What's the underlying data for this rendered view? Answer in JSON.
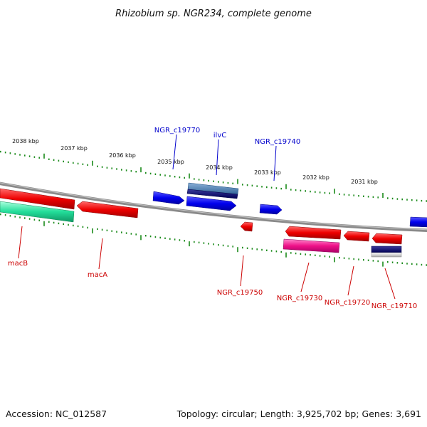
{
  "title": "Rhizobium sp. NGR234, complete genome",
  "footer": {
    "accession": "Accession: NC_012587",
    "summary": "Topology: circular; Length: 3,925,702 bp; Genes: 3,691"
  },
  "colors": {
    "backbone": "#8a8a8a",
    "tick": "#1a8a1a",
    "label_forward": "#0000cc",
    "label_reverse": "#cc0000"
  },
  "scale_labels": [
    "2038 kbp",
    "2037 kbp",
    "2036 kbp",
    "2035 kbp",
    "2034 kbp",
    "2033 kbp",
    "2032 kbp",
    "2031 kbp"
  ],
  "gene_labels": {
    "forward": [
      "NGR_c19770",
      "ilvC",
      "NGR_c19740"
    ],
    "reverse": [
      "macB",
      "macA",
      "NGR_c19750",
      "NGR_c19730",
      "NGR_c19720",
      "NGR_c19710"
    ]
  }
}
